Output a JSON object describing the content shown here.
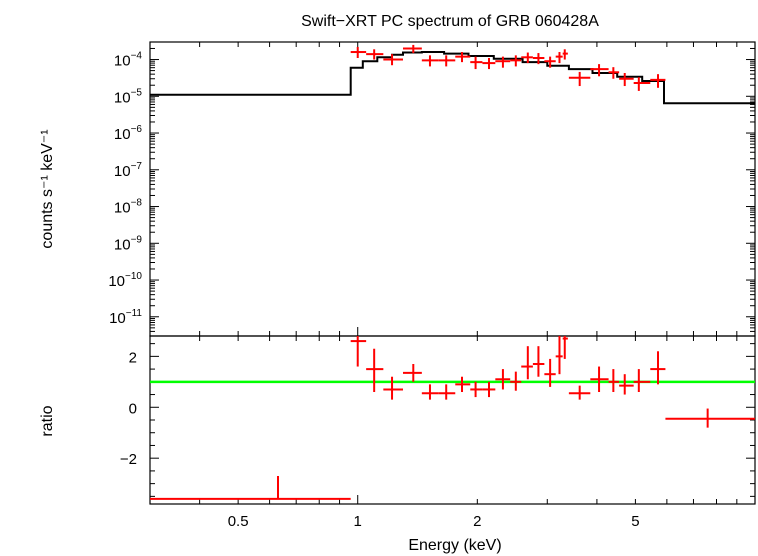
{
  "chart_data": [
    {
      "type": "line",
      "panel": "spectrum",
      "title": "Swift−XRT PC spectrum of GRB 060428A",
      "ylabel": "counts s⁻¹ keV⁻¹",
      "xscale": "log",
      "yscale": "log",
      "xlim": [
        0.3,
        10
      ],
      "ylim": [
        3e-12,
        0.0003
      ],
      "yticks": [
        {
          "value": 0.0001,
          "base": "10",
          "exp": "−4"
        },
        {
          "value": 1e-05,
          "base": "10",
          "exp": "−5"
        },
        {
          "value": 1e-06,
          "base": "10",
          "exp": "−6"
        },
        {
          "value": 1e-07,
          "base": "10",
          "exp": "−7"
        },
        {
          "value": 1e-08,
          "base": "10",
          "exp": "−8"
        },
        {
          "value": 1e-09,
          "base": "10",
          "exp": "−9"
        },
        {
          "value": 1e-10,
          "base": "10",
          "exp": "−10"
        },
        {
          "value": 1e-11,
          "base": "10",
          "exp": "−11"
        }
      ],
      "model": {
        "color": "#000000",
        "bins": [
          [
            0.3,
            0.96,
            1.1e-05
          ],
          [
            0.96,
            1.03,
            6e-05
          ],
          [
            1.03,
            1.12,
            9e-05
          ],
          [
            1.12,
            1.22,
            0.000115
          ],
          [
            1.22,
            1.3,
            0.000135
          ],
          [
            1.3,
            1.45,
            0.000155
          ],
          [
            1.45,
            1.65,
            0.00016
          ],
          [
            1.65,
            1.9,
            0.000145
          ],
          [
            1.9,
            2.2,
            0.000125
          ],
          [
            2.2,
            2.6,
            0.000105
          ],
          [
            2.6,
            3.0,
            8.5e-05
          ],
          [
            3.0,
            3.4,
            6.8e-05
          ],
          [
            3.4,
            3.9,
            5.5e-05
          ],
          [
            3.9,
            4.5,
            4.3e-05
          ],
          [
            4.5,
            5.2,
            3.4e-05
          ],
          [
            5.2,
            5.9,
            2.6e-05
          ],
          [
            5.9,
            10,
            6.5e-06
          ]
        ]
      },
      "data": {
        "color": "#ff0000",
        "points": [
          {
            "x": 1.0,
            "xlo": 0.96,
            "xhi": 1.05,
            "y": 0.00016,
            "ylo": 0.00011,
            "yhi": 0.00022
          },
          {
            "x": 1.1,
            "xlo": 1.05,
            "xhi": 1.16,
            "y": 0.00014,
            "ylo": 0.0001,
            "yhi": 0.00019
          },
          {
            "x": 1.22,
            "xlo": 1.16,
            "xhi": 1.3,
            "y": 0.0001,
            "ylo": 7e-05,
            "yhi": 0.00014
          },
          {
            "x": 1.38,
            "xlo": 1.3,
            "xhi": 1.45,
            "y": 0.0002,
            "ylo": 0.00015,
            "yhi": 0.00025
          },
          {
            "x": 1.52,
            "xlo": 1.45,
            "xhi": 1.6,
            "y": 9.5e-05,
            "ylo": 6.5e-05,
            "yhi": 0.00013
          },
          {
            "x": 1.67,
            "xlo": 1.6,
            "xhi": 1.76,
            "y": 9.5e-05,
            "ylo": 6.5e-05,
            "yhi": 0.00013
          },
          {
            "x": 1.83,
            "xlo": 1.76,
            "xhi": 1.92,
            "y": 0.00012,
            "ylo": 8.5e-05,
            "yhi": 0.00016
          },
          {
            "x": 1.98,
            "xlo": 1.92,
            "xhi": 2.06,
            "y": 8.5e-05,
            "ylo": 5.5e-05,
            "yhi": 0.00012
          },
          {
            "x": 2.14,
            "xlo": 2.06,
            "xhi": 2.22,
            "y": 8e-05,
            "ylo": 5.5e-05,
            "yhi": 0.00011
          },
          {
            "x": 2.32,
            "xlo": 2.22,
            "xhi": 2.42,
            "y": 9e-05,
            "ylo": 6e-05,
            "yhi": 0.00012
          },
          {
            "x": 2.5,
            "xlo": 2.42,
            "xhi": 2.58,
            "y": 9.5e-05,
            "ylo": 6.5e-05,
            "yhi": 0.00013
          },
          {
            "x": 2.68,
            "xlo": 2.58,
            "xhi": 2.76,
            "y": 0.000115,
            "ylo": 8e-05,
            "yhi": 0.000155
          },
          {
            "x": 2.85,
            "xlo": 2.76,
            "xhi": 2.95,
            "y": 0.00011,
            "ylo": 7.5e-05,
            "yhi": 0.00015
          },
          {
            "x": 3.05,
            "xlo": 2.95,
            "xhi": 3.15,
            "y": 9e-05,
            "ylo": 6e-05,
            "yhi": 0.00012
          },
          {
            "x": 3.22,
            "xlo": 3.15,
            "xhi": 3.28,
            "y": 0.00012,
            "ylo": 8e-05,
            "yhi": 0.00016
          },
          {
            "x": 3.32,
            "xlo": 3.28,
            "xhi": 3.38,
            "y": 0.000145,
            "ylo": 0.0001,
            "yhi": 0.00019
          },
          {
            "x": 3.62,
            "xlo": 3.4,
            "xhi": 3.85,
            "y": 3.2e-05,
            "ylo": 1.9e-05,
            "yhi": 4.6e-05
          },
          {
            "x": 4.05,
            "xlo": 3.85,
            "xhi": 4.28,
            "y": 5.5e-05,
            "ylo": 3.5e-05,
            "yhi": 7.5e-05
          },
          {
            "x": 4.4,
            "xlo": 4.28,
            "xhi": 4.55,
            "y": 4.5e-05,
            "ylo": 3e-05,
            "yhi": 6.2e-05
          },
          {
            "x": 4.7,
            "xlo": 4.55,
            "xhi": 4.95,
            "y": 3e-05,
            "ylo": 1.9e-05,
            "yhi": 4.3e-05
          },
          {
            "x": 5.1,
            "xlo": 4.95,
            "xhi": 5.45,
            "y": 2.3e-05,
            "ylo": 1.4e-05,
            "yhi": 3.3e-05
          },
          {
            "x": 5.7,
            "xlo": 5.45,
            "xhi": 5.95,
            "y": 2.8e-05,
            "ylo": 1.7e-05,
            "yhi": 4e-05
          }
        ]
      }
    },
    {
      "type": "scatter",
      "panel": "ratio",
      "ylabel": "ratio",
      "xlabel": "Energy (keV)",
      "xscale": "log",
      "xlim": [
        0.3,
        10
      ],
      "ylim": [
        -3.8,
        2.8
      ],
      "yticks": [
        {
          "value": 2,
          "label": "2"
        },
        {
          "value": 0,
          "label": "0"
        },
        {
          "value": -2,
          "label": "−2"
        }
      ],
      "xticks": [
        {
          "value": 0.5,
          "label": "0.5"
        },
        {
          "value": 1,
          "label": "1"
        },
        {
          "value": 2,
          "label": "2"
        },
        {
          "value": 5,
          "label": "5"
        }
      ],
      "reference_line": {
        "y": 1,
        "color": "#00ff00"
      },
      "data": {
        "color": "#ff0000",
        "points": [
          {
            "x": 0.63,
            "xlo": 0.3,
            "xhi": 0.96,
            "y": -3.6,
            "ylo": -3.6,
            "yhi": -2.7
          },
          {
            "x": 1.0,
            "xlo": 0.96,
            "xhi": 1.05,
            "y": 2.6,
            "ylo": 1.6,
            "yhi": 2.8
          },
          {
            "x": 1.1,
            "xlo": 1.05,
            "xhi": 1.16,
            "y": 1.5,
            "ylo": 0.6,
            "yhi": 2.3
          },
          {
            "x": 1.22,
            "xlo": 1.16,
            "xhi": 1.3,
            "y": 0.7,
            "ylo": 0.3,
            "yhi": 1.2
          },
          {
            "x": 1.38,
            "xlo": 1.3,
            "xhi": 1.45,
            "y": 1.35,
            "ylo": 1.0,
            "yhi": 1.7
          },
          {
            "x": 1.52,
            "xlo": 1.45,
            "xhi": 1.6,
            "y": 0.55,
            "ylo": 0.3,
            "yhi": 0.9
          },
          {
            "x": 1.67,
            "xlo": 1.6,
            "xhi": 1.76,
            "y": 0.55,
            "ylo": 0.3,
            "yhi": 0.9
          },
          {
            "x": 1.83,
            "xlo": 1.76,
            "xhi": 1.92,
            "y": 0.9,
            "ylo": 0.6,
            "yhi": 1.2
          },
          {
            "x": 1.98,
            "xlo": 1.92,
            "xhi": 2.06,
            "y": 0.7,
            "ylo": 0.4,
            "yhi": 1.0
          },
          {
            "x": 2.14,
            "xlo": 2.06,
            "xhi": 2.22,
            "y": 0.7,
            "ylo": 0.4,
            "yhi": 1.0
          },
          {
            "x": 2.32,
            "xlo": 2.22,
            "xhi": 2.42,
            "y": 1.1,
            "ylo": 0.7,
            "yhi": 1.5
          },
          {
            "x": 2.5,
            "xlo": 2.42,
            "xhi": 2.58,
            "y": 1.0,
            "ylo": 0.65,
            "yhi": 1.4
          },
          {
            "x": 2.68,
            "xlo": 2.58,
            "xhi": 2.76,
            "y": 1.6,
            "ylo": 1.1,
            "yhi": 2.4
          },
          {
            "x": 2.85,
            "xlo": 2.76,
            "xhi": 2.95,
            "y": 1.7,
            "ylo": 1.2,
            "yhi": 2.4
          },
          {
            "x": 3.05,
            "xlo": 2.95,
            "xhi": 3.15,
            "y": 1.3,
            "ylo": 0.8,
            "yhi": 1.9
          },
          {
            "x": 3.22,
            "xlo": 3.15,
            "xhi": 3.28,
            "y": 2.0,
            "ylo": 1.3,
            "yhi": 2.8
          },
          {
            "x": 3.32,
            "xlo": 3.28,
            "xhi": 3.38,
            "y": 2.7,
            "ylo": 1.9,
            "yhi": 2.8
          },
          {
            "x": 3.62,
            "xlo": 3.4,
            "xhi": 3.85,
            "y": 0.55,
            "ylo": 0.3,
            "yhi": 0.85
          },
          {
            "x": 4.05,
            "xlo": 3.85,
            "xhi": 4.28,
            "y": 1.1,
            "ylo": 0.6,
            "yhi": 1.6
          },
          {
            "x": 4.4,
            "xlo": 4.28,
            "xhi": 4.55,
            "y": 1.0,
            "ylo": 0.6,
            "yhi": 1.5
          },
          {
            "x": 4.7,
            "xlo": 4.55,
            "xhi": 4.95,
            "y": 0.85,
            "ylo": 0.5,
            "yhi": 1.3
          },
          {
            "x": 5.1,
            "xlo": 4.95,
            "xhi": 5.45,
            "y": 1.0,
            "ylo": 0.6,
            "yhi": 1.5
          },
          {
            "x": 5.7,
            "xlo": 5.45,
            "xhi": 5.95,
            "y": 1.5,
            "ylo": 0.9,
            "yhi": 2.2
          },
          {
            "x": 7.6,
            "xlo": 5.95,
            "xhi": 10,
            "y": -0.45,
            "ylo": -0.8,
            "yhi": -0.05
          }
        ]
      }
    }
  ]
}
